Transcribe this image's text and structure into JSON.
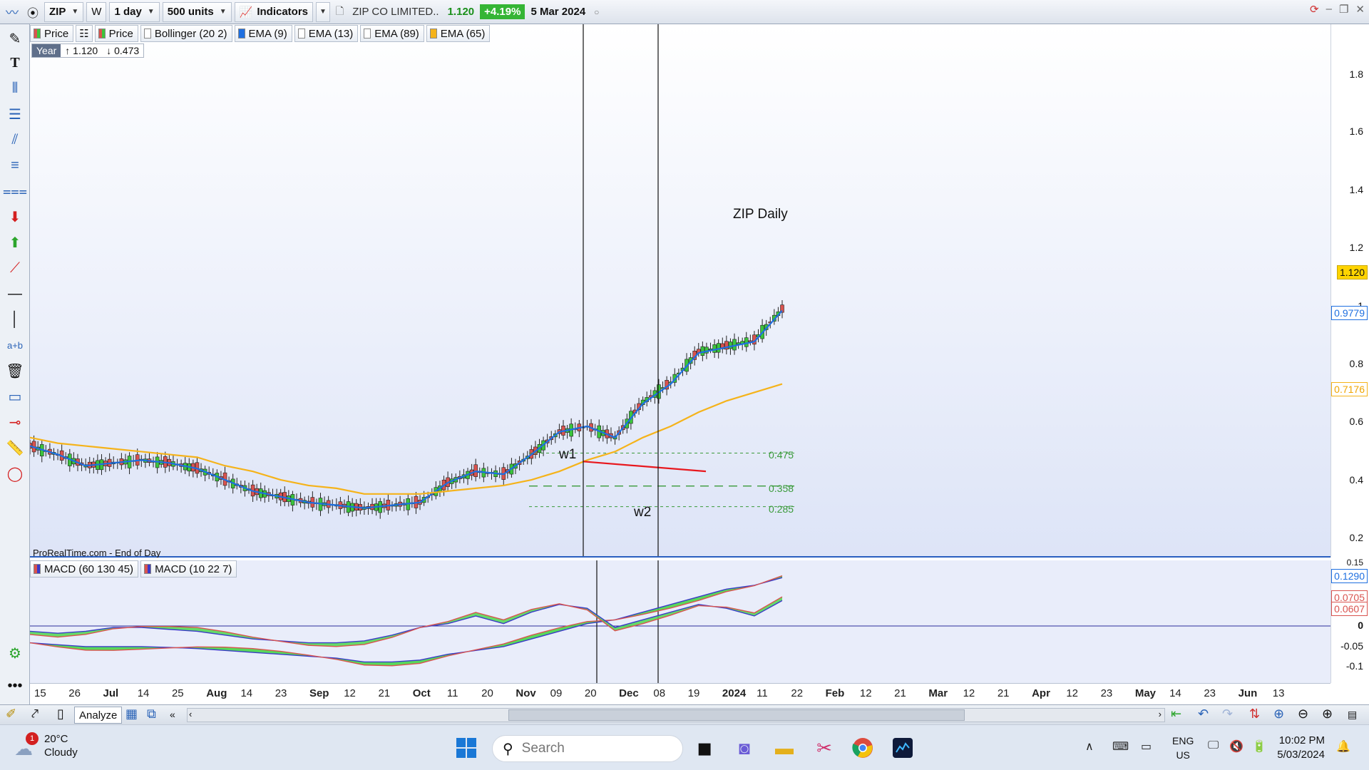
{
  "toolbar": {
    "symbol": "ZIP",
    "period": "1 day",
    "units": "500 units",
    "indicators_label": "Indicators",
    "instrument_name": "ZIP CO LIMITED..",
    "last_price": "1.120",
    "change_pct": "+4.19%",
    "date": "5 Mar 2024",
    "w_label": "W"
  },
  "price_legend": {
    "price1": "Price",
    "price2": "Price",
    "bollinger": "Bollinger (20 2)",
    "ema9": "EMA (9)",
    "ema13": "EMA (13)",
    "ema89": "EMA (89)",
    "ema65": "EMA (65)"
  },
  "year_box": {
    "label": "Year",
    "high": "↑ 1.120",
    "low": "↓ 0.473"
  },
  "chart_text": {
    "title": "ZIP Daily",
    "source": "ProRealTime.com - End of Day",
    "w1": "w1",
    "w2": "w2",
    "fib1": "0.475",
    "fib2": "0.358",
    "fib3": "0.285"
  },
  "macd_legend": {
    "macd1": "MACD (60 130 45)",
    "macd2": "MACD (10 22 7)"
  },
  "price_axis": {
    "ticks": [
      "1.8",
      "1.6",
      "1.4",
      "1.2",
      "1",
      "0.8",
      "0.6",
      "0.4",
      "0.2"
    ],
    "last_price_label": "1.120",
    "ema_blue_label": "0.9779",
    "ema_orange_label": "0.7176"
  },
  "macd_axis": {
    "ticks": [
      "0.15",
      "0",
      "-0.05",
      "-0.1"
    ],
    "label_blue": "0.1290",
    "label_red1": "0.0705",
    "label_red2": "0.0607"
  },
  "x_axis": {
    "labels": [
      "15",
      "26",
      "Jul",
      "14",
      "25",
      "Aug",
      "14",
      "23",
      "Sep",
      "12",
      "21",
      "Oct",
      "11",
      "20",
      "Nov",
      "09",
      "20",
      "Dec",
      "08",
      "19",
      "2024",
      "11",
      "22",
      "Feb",
      "12",
      "21",
      "Mar",
      "12",
      "21",
      "Apr",
      "12",
      "23",
      "May",
      "14",
      "23",
      "Jun",
      "13"
    ]
  },
  "bottom_toolbar": {
    "analyze_label": "Analyze"
  },
  "taskbar": {
    "weather_temp": "20°C",
    "weather_desc": "Cloudy",
    "weather_badge": "1",
    "search_placeholder": "Search",
    "lang1": "ENG",
    "lang2": "US",
    "time": "10:02 PM",
    "date": "5/03/2024"
  },
  "colors": {
    "ema_blue": "#1e6fe0",
    "ema_orange": "#f5b31a",
    "candle_up": "#3cc43c",
    "candle_down": "#d9534f",
    "trend_red": "#e8181e",
    "fib_green": "#3a9a3a",
    "chart_bg": "#e9edfa"
  },
  "chart_data": {
    "type": "candlestick",
    "title": "ZIP Daily",
    "ylim": [
      0.15,
      1.95
    ],
    "x": [
      "15 Jun 2023",
      "26 Jun",
      "Jul",
      "14 Jul",
      "25 Jul",
      "Aug",
      "14 Aug",
      "23 Aug",
      "Sep",
      "12 Sep",
      "21 Sep",
      "Oct",
      "11 Oct",
      "20 Oct",
      "Nov",
      "09 Nov",
      "20 Nov",
      "Dec",
      "08 Dec",
      "19 Dec",
      "2024",
      "11 Jan",
      "22 Jan",
      "Feb",
      "12 Feb",
      "21 Feb",
      "Mar",
      "05 Mar"
    ],
    "series": [
      {
        "name": "EMA (9)",
        "values": [
          0.5,
          0.47,
          0.43,
          0.44,
          0.45,
          0.44,
          0.42,
          0.38,
          0.34,
          0.32,
          0.3,
          0.29,
          0.28,
          0.29,
          0.3,
          0.37,
          0.41,
          0.4,
          0.47,
          0.55,
          0.57,
          0.53,
          0.65,
          0.72,
          0.83,
          0.85,
          0.87,
          0.98
        ]
      },
      {
        "name": "EMA (65)",
        "values": [
          0.53,
          0.51,
          0.5,
          0.49,
          0.48,
          0.47,
          0.46,
          0.43,
          0.41,
          0.38,
          0.36,
          0.35,
          0.33,
          0.33,
          0.33,
          0.34,
          0.35,
          0.36,
          0.38,
          0.41,
          0.45,
          0.48,
          0.53,
          0.57,
          0.62,
          0.66,
          0.69,
          0.72
        ]
      }
    ],
    "annotations": [
      {
        "text": "w1",
        "x": "09 Nov",
        "y": 0.49
      },
      {
        "text": "w2",
        "x": "Dec",
        "y": 0.29
      },
      {
        "text": "0.475",
        "y": 0.475
      },
      {
        "text": "0.358",
        "y": 0.358
      },
      {
        "text": "0.285",
        "y": 0.285
      }
    ],
    "last_price": 1.12,
    "macd": {
      "ylim": [
        -0.13,
        0.16
      ],
      "series": [
        {
          "name": "MACD (60 130 45)",
          "values": [
            -0.04,
            -0.045,
            -0.05,
            -0.05,
            -0.05,
            -0.052,
            -0.055,
            -0.06,
            -0.065,
            -0.07,
            -0.075,
            -0.08,
            -0.09,
            -0.09,
            -0.085,
            -0.07,
            -0.06,
            -0.05,
            -0.03,
            -0.01,
            0.01,
            0.02,
            0.04,
            0.06,
            0.08,
            0.1,
            0.11,
            0.13
          ]
        },
        {
          "name": "MACD (10 22 7)",
          "values": [
            -0.01,
            -0.015,
            -0.01,
            0.0,
            0.0,
            -0.005,
            -0.01,
            -0.02,
            -0.03,
            -0.035,
            -0.04,
            -0.04,
            -0.035,
            -0.02,
            0.0,
            0.01,
            0.03,
            0.01,
            0.04,
            0.06,
            0.05,
            0.0,
            0.02,
            0.04,
            0.06,
            0.05,
            0.03,
            0.07
          ]
        }
      ]
    }
  }
}
